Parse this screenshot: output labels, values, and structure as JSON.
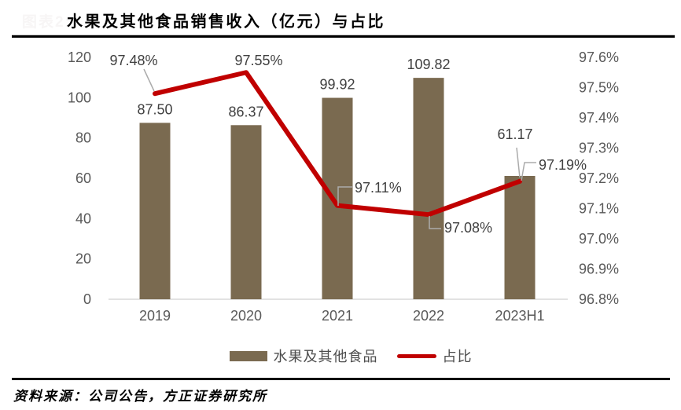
{
  "header": {
    "watermark": "图表2:",
    "title": "水果及其他食品销售收入（亿元）与占比"
  },
  "legend": {
    "bar_label": "水果及其他食品",
    "line_label": "占比"
  },
  "footer": {
    "source": "资料来源：公司公告，方正证券研究所"
  },
  "colors": {
    "bar": "#7a6a50",
    "line": "#c00000",
    "axis_line": "#d9d9d9",
    "tick_text": "#595959",
    "data_label": "#404040",
    "leader": "#ababab"
  },
  "chart_data": {
    "type": "bar",
    "subtype": "bar+line combo, dual axis",
    "title": "水果及其他食品销售收入（亿元）与占比",
    "categories": [
      "2019",
      "2020",
      "2021",
      "2022",
      "2023H1"
    ],
    "series": [
      {
        "name": "水果及其他食品",
        "type": "bar",
        "axis": "left",
        "values": [
          87.5,
          86.37,
          99.92,
          109.82,
          61.17
        ],
        "labels": [
          "87.50",
          "86.37",
          "99.92",
          "109.82",
          "61.17"
        ]
      },
      {
        "name": "占比",
        "type": "line",
        "axis": "right",
        "values": [
          97.48,
          97.55,
          97.11,
          97.08,
          97.19
        ],
        "labels": [
          "97.48%",
          "97.55%",
          "97.11%",
          "97.08%",
          "97.19%"
        ]
      }
    ],
    "left_axis": {
      "min": 0,
      "max": 120,
      "step": 20,
      "ticks": [
        "0",
        "20",
        "40",
        "60",
        "80",
        "100",
        "120"
      ]
    },
    "right_axis": {
      "min": 96.8,
      "max": 97.6,
      "step": 0.1,
      "ticks": [
        "96.8%",
        "96.9%",
        "97.0%",
        "97.1%",
        "97.2%",
        "97.3%",
        "97.4%",
        "97.5%",
        "97.6%"
      ]
    },
    "grid": false,
    "legend_position": "bottom"
  }
}
